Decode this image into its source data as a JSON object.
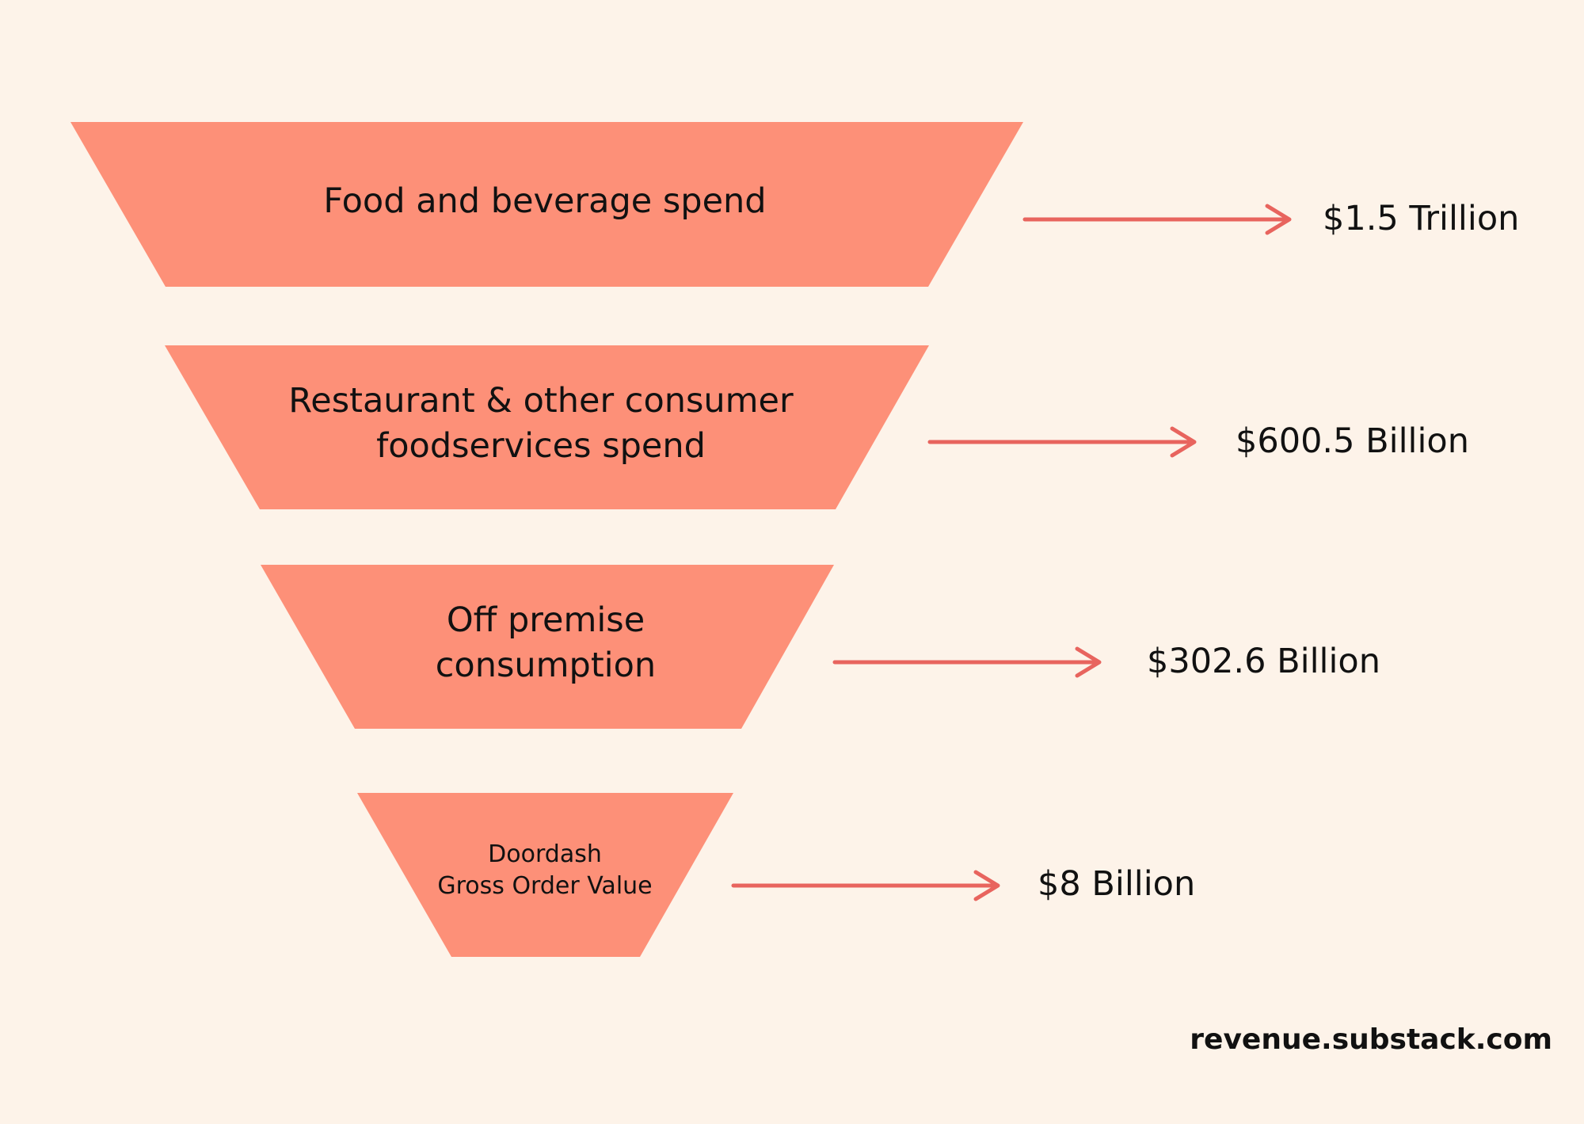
{
  "funnel": {
    "colors": {
      "background": "#fdf3e9",
      "stage_fill": "#fd9078",
      "arrow": "#e8645e"
    },
    "stages": [
      {
        "label_lines": [
          "Food and beverage spend"
        ],
        "value": "$1.5 Trillion"
      },
      {
        "label_lines": [
          "Restaurant & other consumer",
          "foodservices spend"
        ],
        "value": "$600.5 Billion"
      },
      {
        "label_lines": [
          "Off premise",
          "consumption"
        ],
        "value": "$302.6 Billion"
      },
      {
        "label_lines": [
          "Doordash",
          "Gross Order Value"
        ],
        "value": "$8 Billion"
      }
    ]
  },
  "footer": {
    "text": "revenue.substack.com"
  }
}
